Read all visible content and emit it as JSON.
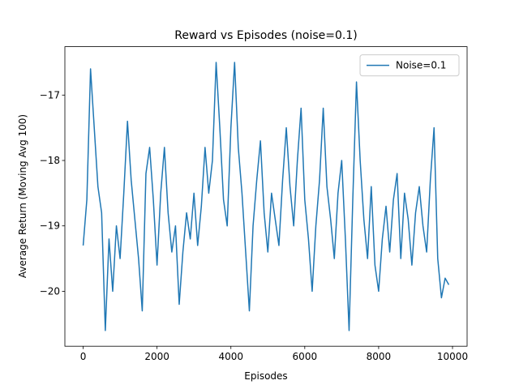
{
  "chart_data": {
    "type": "line",
    "title": "Reward vs Episodes (noise=0.1)",
    "xlabel": "Episodes",
    "ylabel": "Average Return (Moving Avg 100)",
    "x": [
      0,
      100,
      200,
      300,
      400,
      500,
      600,
      700,
      800,
      900,
      1000,
      1100,
      1200,
      1300,
      1400,
      1500,
      1600,
      1700,
      1800,
      1900,
      2000,
      2100,
      2200,
      2300,
      2400,
      2500,
      2600,
      2700,
      2800,
      2900,
      3000,
      3100,
      3200,
      3300,
      3400,
      3500,
      3600,
      3700,
      3800,
      3900,
      4000,
      4100,
      4200,
      4300,
      4400,
      4500,
      4600,
      4700,
      4800,
      4900,
      5000,
      5100,
      5200,
      5300,
      5400,
      5500,
      5600,
      5700,
      5800,
      5900,
      6000,
      6100,
      6200,
      6300,
      6400,
      6500,
      6600,
      6700,
      6800,
      6900,
      7000,
      7100,
      7200,
      7300,
      7400,
      7500,
      7600,
      7700,
      7800,
      7900,
      8000,
      8100,
      8200,
      8300,
      8400,
      8500,
      8600,
      8700,
      8800,
      8900,
      9000,
      9100,
      9200,
      9300,
      9400,
      9500,
      9600,
      9700,
      9800,
      9900
    ],
    "series": [
      {
        "name": "Noise=0.1",
        "color": "#1f77b4",
        "values": [
          -19.3,
          -18.6,
          -16.6,
          -17.5,
          -18.4,
          -18.8,
          -20.6,
          -19.2,
          -20.0,
          -19.0,
          -19.5,
          -18.5,
          -17.4,
          -18.3,
          -18.9,
          -19.5,
          -20.3,
          -18.2,
          -17.8,
          -18.6,
          -19.6,
          -18.5,
          -17.8,
          -18.8,
          -19.4,
          -19.0,
          -20.2,
          -19.4,
          -18.8,
          -19.2,
          -18.5,
          -19.3,
          -18.7,
          -17.8,
          -18.5,
          -18.0,
          -16.5,
          -17.5,
          -18.6,
          -19.0,
          -17.5,
          -16.5,
          -17.8,
          -18.5,
          -19.4,
          -20.3,
          -19.0,
          -18.3,
          -17.7,
          -18.8,
          -19.4,
          -18.5,
          -18.9,
          -19.3,
          -18.3,
          -17.5,
          -18.4,
          -19.0,
          -18.0,
          -17.2,
          -18.6,
          -19.2,
          -20.0,
          -19.0,
          -18.3,
          -17.2,
          -18.4,
          -18.9,
          -19.5,
          -18.5,
          -18.0,
          -19.2,
          -20.6,
          -18.6,
          -16.8,
          -18.0,
          -18.9,
          -19.5,
          -18.4,
          -19.6,
          -20.0,
          -19.2,
          -18.7,
          -19.4,
          -18.6,
          -18.2,
          -19.5,
          -18.5,
          -18.9,
          -19.6,
          -18.8,
          -18.4,
          -19.0,
          -19.4,
          -18.3,
          -17.5,
          -19.5,
          -20.1,
          -19.8,
          -19.9
        ]
      }
    ],
    "xlim": [
      -495,
      10395
    ],
    "ylim": [
      -20.84,
      -16.26
    ],
    "xticks": [
      0,
      2000,
      4000,
      6000,
      8000,
      10000
    ],
    "yticks": [
      {
        "value": -20,
        "label": "−20"
      },
      {
        "value": -19,
        "label": "−19"
      },
      {
        "value": -18,
        "label": "−18"
      },
      {
        "value": -17,
        "label": "−17"
      }
    ],
    "legend": "upper right"
  }
}
